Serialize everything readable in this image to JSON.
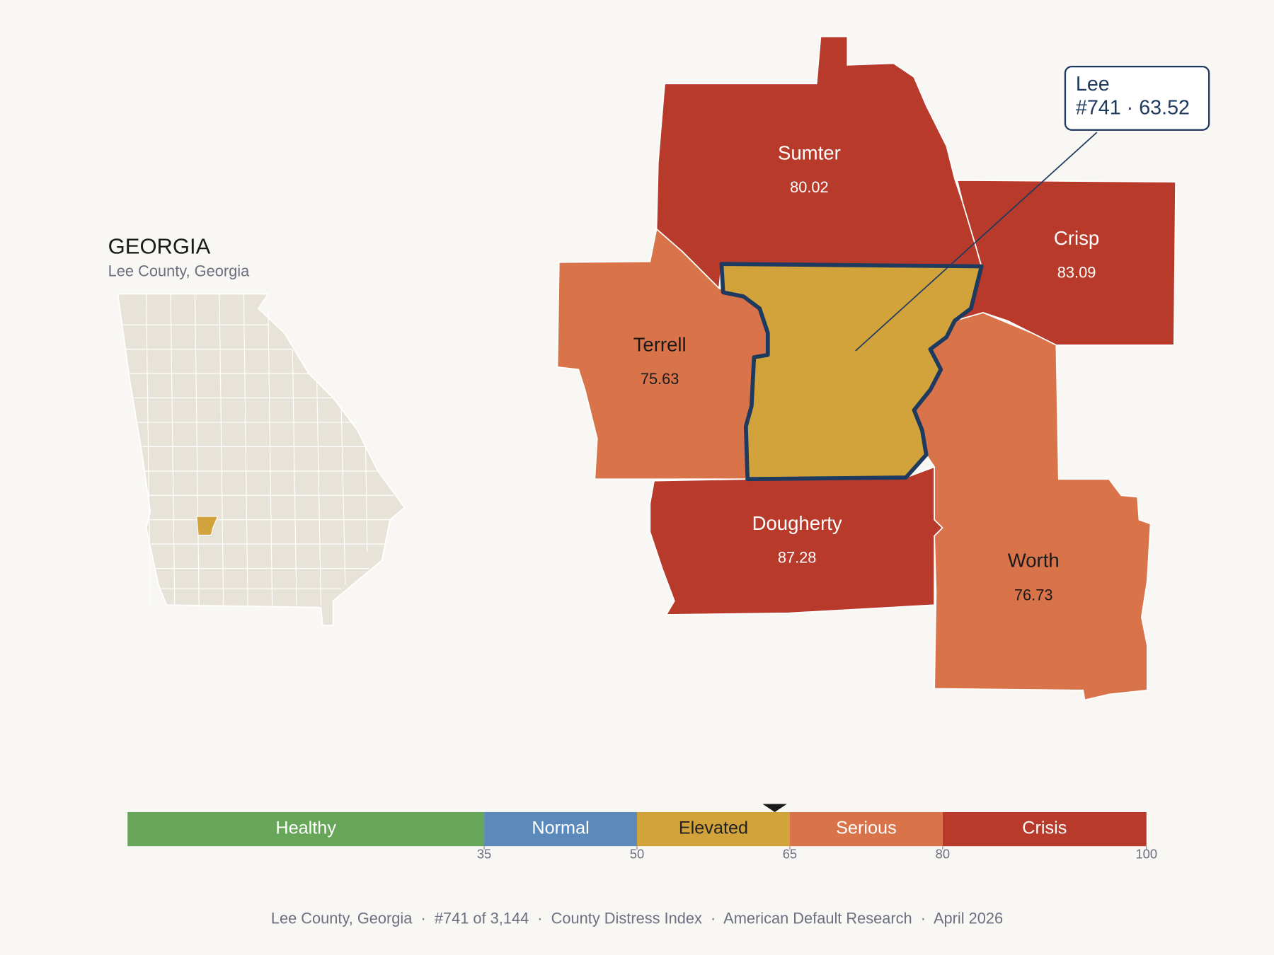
{
  "inset": {
    "title": "GEORGIA",
    "subtitle": "Lee County, Georgia"
  },
  "selected": {
    "name": "Lee",
    "rank_label": "#741 · 63.52",
    "score": 63.52
  },
  "counties": [
    {
      "name": "Sumter",
      "score": 80.02
    },
    {
      "name": "Crisp",
      "score": 83.09
    },
    {
      "name": "Terrell",
      "score": 75.63
    },
    {
      "name": "Dougherty",
      "score": 87.28
    },
    {
      "name": "Worth",
      "score": 76.73
    }
  ],
  "legend": {
    "range": [
      0,
      100
    ],
    "breaks": [
      35,
      50,
      65,
      80,
      100
    ],
    "bands": [
      {
        "label": "Healthy",
        "color": "#67a658",
        "text_color": "#ffffff"
      },
      {
        "label": "Normal",
        "color": "#5b8aba",
        "text_color": "#ffffff"
      },
      {
        "label": "Elevated",
        "color": "#d2a33b",
        "text_color": "#222222"
      },
      {
        "label": "Serious",
        "color": "#d9744a",
        "text_color": "#ffffff"
      },
      {
        "label": "Crisis",
        "color": "#b83a2b",
        "text_color": "#ffffff"
      }
    ]
  },
  "footer": "Lee County, Georgia  ·  #741 of 3,144  ·  County Distress Index  ·  American Default Research  ·  April 2026"
}
